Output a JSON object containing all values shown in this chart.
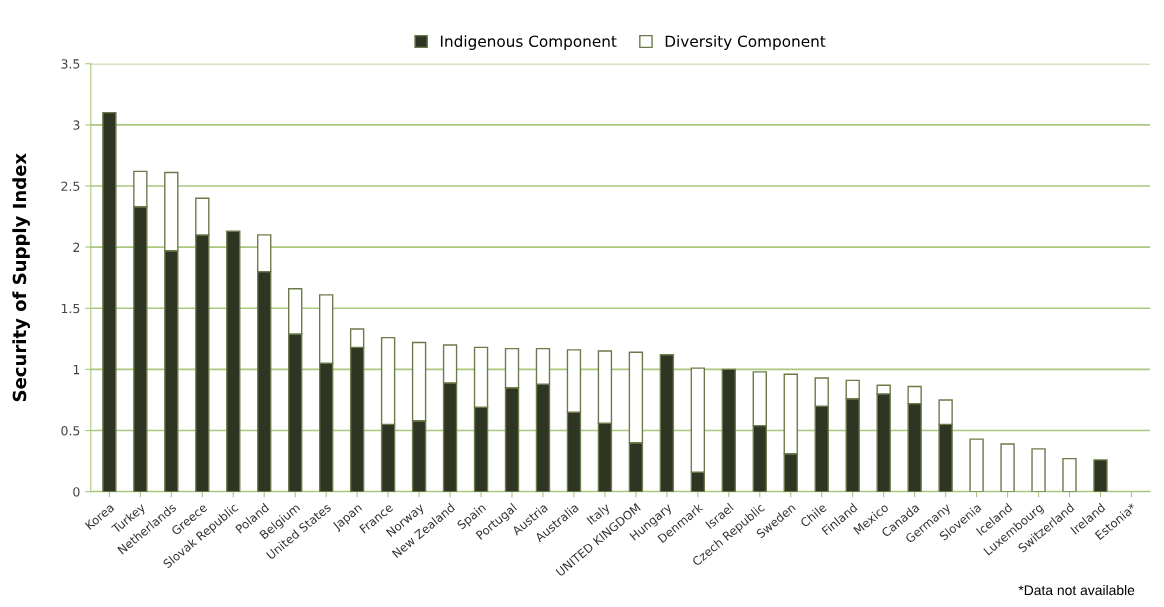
{
  "chart_data": {
    "type": "bar",
    "stacked": true,
    "ylabel": "Security of Supply Index",
    "categories": [
      "Korea",
      "Turkey",
      "Netherlands",
      "Greece",
      "Slovak Republic",
      "Poland",
      "Belgium",
      "United States",
      "Japan",
      "France",
      "Norway",
      "New Zealand",
      "Spain",
      "Portugal",
      "Austria",
      "Australia",
      "Italy",
      "UNITED KINGDOM",
      "Hungary",
      "Denmark",
      "Israel",
      "Czech Republic",
      "Sweden",
      "Chile",
      "Finland",
      "Mexico",
      "Canada",
      "Germany",
      "Slovenia",
      "Iceland",
      "Luxembourg",
      "Switzerland",
      "Ireland",
      "Estonia*"
    ],
    "series": [
      {
        "name": "Indigenous Component",
        "color": "#2e3522",
        "values": [
          3.1,
          2.33,
          1.97,
          2.1,
          2.13,
          1.8,
          1.29,
          1.05,
          1.18,
          0.55,
          0.58,
          0.89,
          0.69,
          0.85,
          0.88,
          0.65,
          0.56,
          0.4,
          1.12,
          0.16,
          1.0,
          0.54,
          0.31,
          0.7,
          0.76,
          0.8,
          0.72,
          0.55,
          0,
          0,
          0,
          null,
          0.26,
          null
        ]
      },
      {
        "name": "Diversity Component",
        "color": "#ffffff",
        "values": [
          0,
          0.29,
          0.64,
          0.3,
          0,
          0.3,
          0.37,
          0.56,
          0.15,
          0.71,
          0.64,
          0.31,
          0.49,
          0.32,
          0.29,
          0.51,
          0.59,
          0.74,
          0,
          0.85,
          0,
          0.44,
          0.65,
          0.23,
          0.15,
          0.07,
          0.14,
          0.2,
          0.43,
          0.39,
          0.35,
          0.27,
          0,
          null
        ]
      }
    ],
    "ylim": [
      0,
      3.5
    ],
    "yticks": [
      0,
      0.5,
      1,
      1.5,
      2,
      2.5,
      3,
      3.5
    ],
    "grid": "y",
    "legend": "top",
    "annotations": [
      "*Data not available"
    ]
  }
}
